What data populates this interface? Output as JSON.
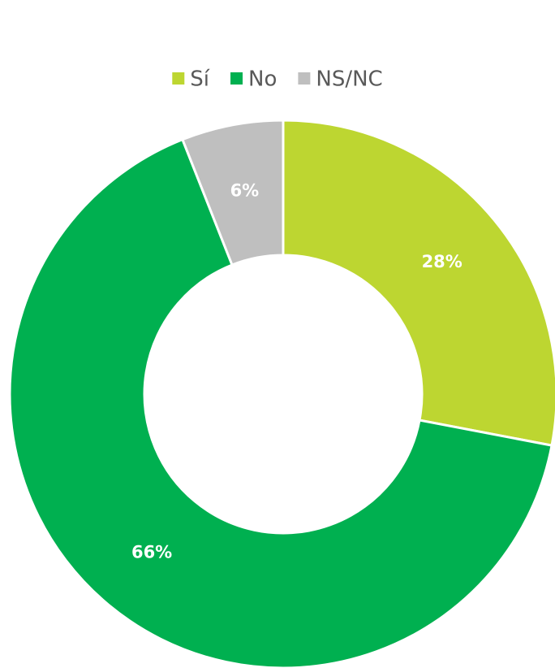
{
  "chart_data": {
    "type": "donut",
    "categories": [
      "Sí",
      "No",
      "NS/NC"
    ],
    "values": [
      28,
      66,
      6
    ],
    "value_labels": [
      "28%",
      "66%",
      "6%"
    ],
    "colors": [
      "#bdd631",
      "#00b050",
      "#bfbfbf"
    ],
    "legend": "top"
  }
}
